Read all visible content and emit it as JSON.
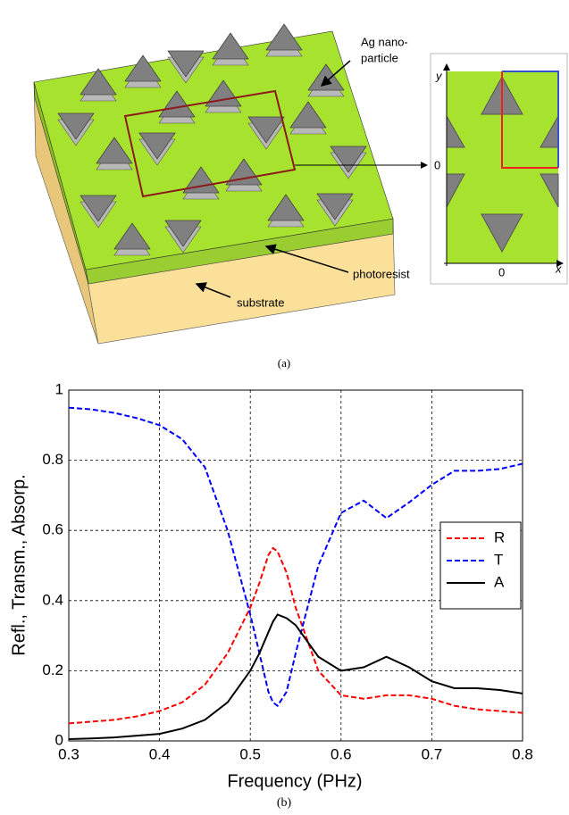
{
  "diagram": {
    "particle_label": [
      "Ag nano-",
      "particle"
    ],
    "photoresist_label": "photoresist",
    "substrate_label": "substrate",
    "inset_y_axis": "y",
    "inset_x_axis": "x",
    "inset_y_origin": "0",
    "inset_x_origin": "0",
    "caption": "(a)"
  },
  "chart_data": {
    "type": "line",
    "xlabel": "Frequency (PHz)",
    "ylabel": "Refl., Transm., Absorp.",
    "caption": "(b)",
    "x": [
      0.3,
      0.325,
      0.35,
      0.375,
      0.4,
      0.425,
      0.45,
      0.475,
      0.5,
      0.51,
      0.52,
      0.525,
      0.53,
      0.54,
      0.55,
      0.575,
      0.6,
      0.625,
      0.65,
      0.675,
      0.7,
      0.725,
      0.75,
      0.775,
      0.8
    ],
    "series": [
      {
        "name": "R",
        "color": "#ff0000",
        "style": "dashed",
        "values": [
          0.05,
          0.055,
          0.06,
          0.07,
          0.085,
          0.11,
          0.16,
          0.25,
          0.38,
          0.45,
          0.53,
          0.55,
          0.54,
          0.48,
          0.38,
          0.2,
          0.13,
          0.12,
          0.13,
          0.13,
          0.12,
          0.1,
          0.09,
          0.085,
          0.08
        ]
      },
      {
        "name": "T",
        "color": "#0000ff",
        "style": "dashed",
        "values": [
          0.95,
          0.945,
          0.935,
          0.92,
          0.9,
          0.86,
          0.78,
          0.6,
          0.36,
          0.25,
          0.14,
          0.11,
          0.1,
          0.14,
          0.25,
          0.5,
          0.65,
          0.685,
          0.635,
          0.68,
          0.73,
          0.77,
          0.77,
          0.775,
          0.79
        ]
      },
      {
        "name": "A",
        "color": "#000000",
        "style": "solid",
        "values": [
          0.005,
          0.007,
          0.01,
          0.015,
          0.02,
          0.035,
          0.06,
          0.11,
          0.2,
          0.25,
          0.31,
          0.34,
          0.36,
          0.35,
          0.33,
          0.24,
          0.2,
          0.21,
          0.24,
          0.21,
          0.17,
          0.15,
          0.15,
          0.145,
          0.135
        ]
      }
    ],
    "xlim": [
      0.3,
      0.8
    ],
    "ylim": [
      0,
      1
    ],
    "xticks": [
      0.3,
      0.4,
      0.5,
      0.6,
      0.7,
      0.8
    ],
    "yticks": [
      0,
      0.2,
      0.4,
      0.6,
      0.8,
      1
    ],
    "grid": true,
    "legend": "right"
  }
}
